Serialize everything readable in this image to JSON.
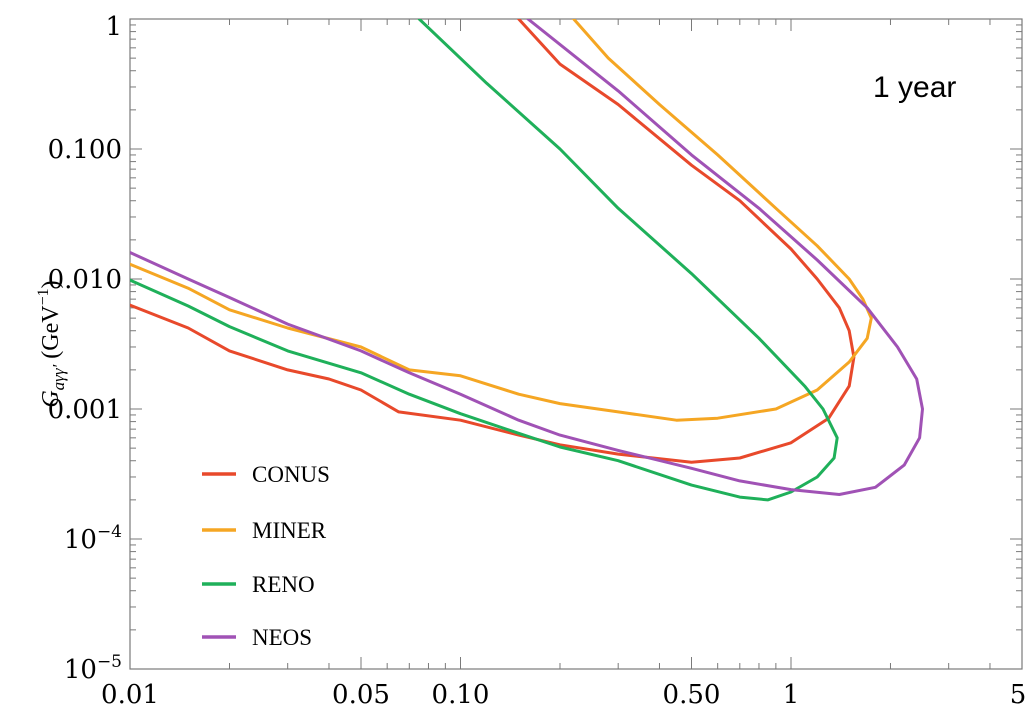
{
  "chart_data": {
    "type": "line",
    "title": "",
    "xlabel": "",
    "ylabel_parts": {
      "base": "G",
      "sub": "aγγ′",
      "unit_open": " (GeV",
      "unit_sup": "−1",
      "unit_close": ")"
    },
    "xscale": "log",
    "yscale": "log",
    "xlim": [
      0.01,
      5
    ],
    "ylim": [
      1e-05,
      1
    ],
    "annotation": "1 year",
    "legend_position": "bottom-left",
    "x_ticks": [
      {
        "value": 0.01,
        "label": "0.01"
      },
      {
        "value": 0.05,
        "label": "0.05"
      },
      {
        "value": 0.1,
        "label": "0.10"
      },
      {
        "value": 0.5,
        "label": "0.50"
      },
      {
        "value": 1,
        "label": "1"
      },
      {
        "value": 5,
        "label": "5"
      }
    ],
    "y_ticks": [
      {
        "value": 1,
        "label": "1",
        "exp": ""
      },
      {
        "value": 0.1,
        "label": "0.100",
        "exp": ""
      },
      {
        "value": 0.01,
        "label": "0.010",
        "exp": ""
      },
      {
        "value": 0.001,
        "label": "0.001",
        "exp": ""
      },
      {
        "value": 0.0001,
        "label": "10",
        "exp": "−4"
      },
      {
        "value": 1e-05,
        "label": "10",
        "exp": "−5"
      }
    ],
    "series": [
      {
        "name": "CONUS",
        "color": "#e8492b",
        "points": [
          [
            0.01,
            0.0063
          ],
          [
            0.015,
            0.0042
          ],
          [
            0.02,
            0.0028
          ],
          [
            0.03,
            0.002
          ],
          [
            0.04,
            0.0017
          ],
          [
            0.05,
            0.0014
          ],
          [
            0.065,
            0.00095
          ],
          [
            0.1,
            0.00082
          ],
          [
            0.15,
            0.00063
          ],
          [
            0.2,
            0.00053
          ],
          [
            0.3,
            0.00045
          ],
          [
            0.5,
            0.00039
          ],
          [
            0.7,
            0.00042
          ],
          [
            1,
            0.00055
          ],
          [
            1.3,
            0.00085
          ],
          [
            1.5,
            0.0015
          ],
          [
            1.55,
            0.0025
          ],
          [
            1.5,
            0.004
          ],
          [
            1.4,
            0.006
          ],
          [
            1.2,
            0.01
          ],
          [
            1,
            0.017
          ],
          [
            0.7,
            0.04
          ],
          [
            0.5,
            0.075
          ],
          [
            0.3,
            0.22
          ],
          [
            0.2,
            0.45
          ],
          [
            0.15,
            1
          ]
        ]
      },
      {
        "name": "MINER",
        "color": "#f5a623",
        "points": [
          [
            0.01,
            0.013
          ],
          [
            0.015,
            0.0085
          ],
          [
            0.02,
            0.0058
          ],
          [
            0.03,
            0.0042
          ],
          [
            0.05,
            0.003
          ],
          [
            0.07,
            0.002
          ],
          [
            0.1,
            0.0018
          ],
          [
            0.15,
            0.0013
          ],
          [
            0.2,
            0.0011
          ],
          [
            0.3,
            0.00095
          ],
          [
            0.45,
            0.00082
          ],
          [
            0.6,
            0.00085
          ],
          [
            0.9,
            0.001
          ],
          [
            1.2,
            0.0014
          ],
          [
            1.5,
            0.0023
          ],
          [
            1.7,
            0.0035
          ],
          [
            1.75,
            0.005
          ],
          [
            1.65,
            0.007
          ],
          [
            1.5,
            0.01
          ],
          [
            1.2,
            0.018
          ],
          [
            0.9,
            0.035
          ],
          [
            0.6,
            0.09
          ],
          [
            0.4,
            0.22
          ],
          [
            0.28,
            0.5
          ],
          [
            0.22,
            1
          ]
        ]
      },
      {
        "name": "RENO",
        "color": "#1fb05a",
        "points": [
          [
            0.01,
            0.0098
          ],
          [
            0.015,
            0.0062
          ],
          [
            0.02,
            0.0043
          ],
          [
            0.03,
            0.0028
          ],
          [
            0.05,
            0.0019
          ],
          [
            0.07,
            0.0013
          ],
          [
            0.1,
            0.00092
          ],
          [
            0.15,
            0.00065
          ],
          [
            0.2,
            0.00051
          ],
          [
            0.3,
            0.0004
          ],
          [
            0.5,
            0.00026
          ],
          [
            0.7,
            0.00021
          ],
          [
            0.85,
            0.0002
          ],
          [
            1,
            0.00023
          ],
          [
            1.2,
            0.0003
          ],
          [
            1.35,
            0.00042
          ],
          [
            1.38,
            0.0006
          ],
          [
            1.25,
            0.001
          ],
          [
            1.1,
            0.0015
          ],
          [
            0.8,
            0.0035
          ],
          [
            0.5,
            0.011
          ],
          [
            0.3,
            0.035
          ],
          [
            0.2,
            0.1
          ],
          [
            0.12,
            0.32
          ],
          [
            0.075,
            1
          ]
        ]
      },
      {
        "name": "NEOS",
        "color": "#a052b5",
        "points": [
          [
            0.01,
            0.016
          ],
          [
            0.015,
            0.01
          ],
          [
            0.02,
            0.0072
          ],
          [
            0.03,
            0.0045
          ],
          [
            0.05,
            0.0028
          ],
          [
            0.07,
            0.0019
          ],
          [
            0.1,
            0.0013
          ],
          [
            0.15,
            0.00082
          ],
          [
            0.2,
            0.00063
          ],
          [
            0.3,
            0.00048
          ],
          [
            0.5,
            0.00035
          ],
          [
            0.7,
            0.00028
          ],
          [
            1,
            0.00024
          ],
          [
            1.4,
            0.00022
          ],
          [
            1.8,
            0.00025
          ],
          [
            2.2,
            0.00037
          ],
          [
            2.45,
            0.0006
          ],
          [
            2.5,
            0.001
          ],
          [
            2.4,
            0.0017
          ],
          [
            2.1,
            0.003
          ],
          [
            1.7,
            0.006
          ],
          [
            1.2,
            0.014
          ],
          [
            0.8,
            0.035
          ],
          [
            0.5,
            0.09
          ],
          [
            0.3,
            0.28
          ],
          [
            0.16,
            1
          ]
        ]
      }
    ]
  }
}
